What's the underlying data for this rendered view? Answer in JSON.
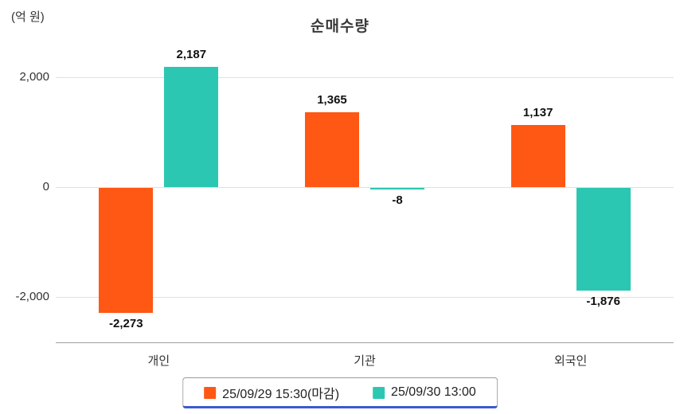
{
  "header": {
    "title": "순매수량",
    "unit_label": "(억 원)"
  },
  "chart_data": {
    "type": "bar",
    "title": "순매수량",
    "ylabel": "(억 원)",
    "categories": [
      "개인",
      "기관",
      "외국인"
    ],
    "series": [
      {
        "name": "25/09/29 15:30(마감)",
        "color": "#ff5714",
        "values": [
          -2273,
          1365,
          1137
        ],
        "labels": [
          "-2,273",
          "1,365",
          "1,137"
        ]
      },
      {
        "name": "25/09/30 13:00",
        "color": "#2bc7b2",
        "values": [
          2187,
          -8,
          -1876
        ],
        "labels": [
          "2,187",
          "-8",
          "-1,876"
        ]
      }
    ],
    "yticks": [
      {
        "value": 2000,
        "label": "2,000"
      },
      {
        "value": 0,
        "label": "0"
      },
      {
        "value": -2000,
        "label": "-2,000"
      }
    ],
    "ylim": [
      -2800,
      2600
    ],
    "grid": true,
    "legend_position": "bottom"
  },
  "colors": {
    "series_1": "#ff5714",
    "series_2": "#2bc7b2",
    "gridline": "#e0e0e0",
    "axis": "#9e9e9e",
    "legend_border": "#9a9a9a",
    "legend_accent": "#3b5bcc"
  }
}
